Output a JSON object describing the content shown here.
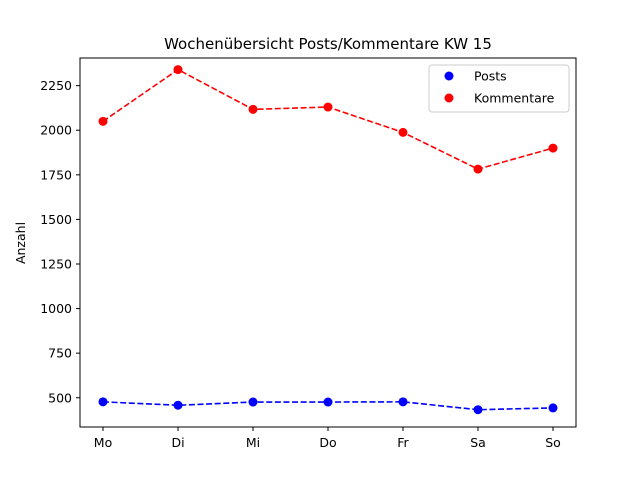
{
  "chart_data": {
    "type": "line",
    "title": "Wochenübersicht Posts/Kommentare KW 15",
    "xlabel": "",
    "ylabel": "Anzahl",
    "categories": [
      "Mo",
      "Di",
      "Mi",
      "Do",
      "Fr",
      "Sa",
      "So"
    ],
    "ylim": [
      336,
      2405
    ],
    "yticks": [
      500,
      750,
      1000,
      1250,
      1500,
      1750,
      2000,
      2250
    ],
    "grid": false,
    "legend_position": "top-right",
    "series": [
      {
        "name": "Posts",
        "color": "#0000ff",
        "line_style": "dashed",
        "marker": "circle",
        "values": [
          477,
          458,
          476,
          476,
          477,
          433,
          443
        ]
      },
      {
        "name": "Kommentare",
        "color": "#ff0000",
        "line_style": "dashed",
        "marker": "circle",
        "values": [
          2050,
          2340,
          2117,
          2130,
          1988,
          1782,
          1900
        ]
      }
    ]
  }
}
